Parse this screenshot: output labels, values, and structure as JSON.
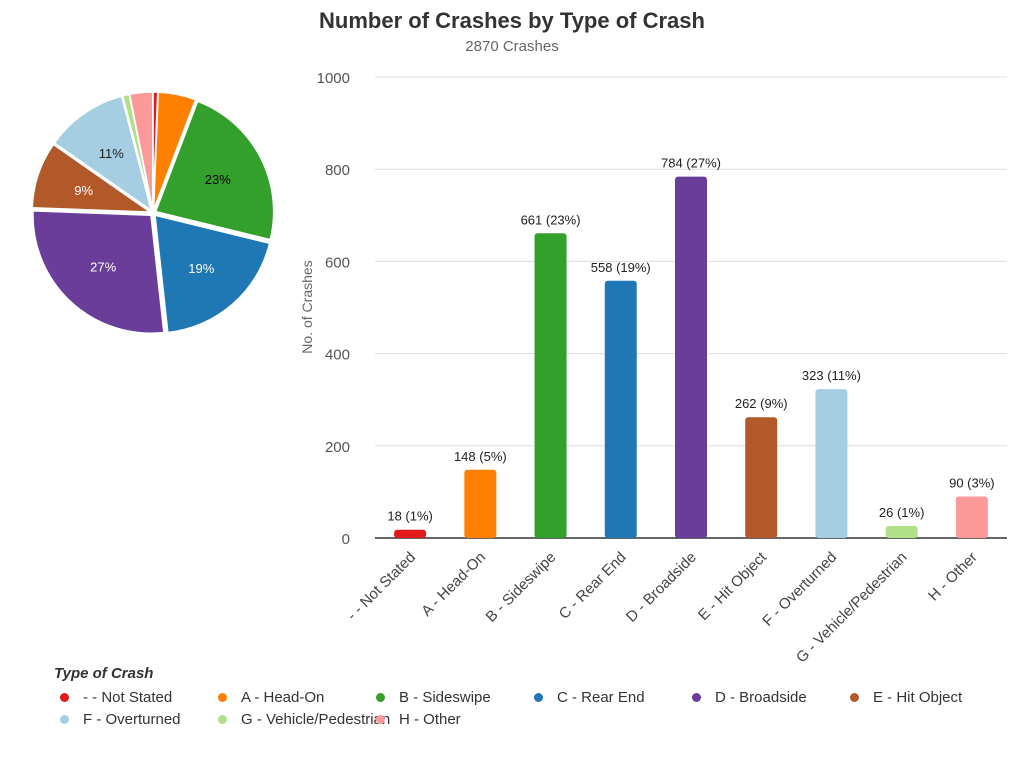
{
  "chart_data": [
    {
      "type": "pie",
      "categories": [
        "- - Not Stated",
        "A - Head-On",
        "B - Sideswipe",
        "C - Rear End",
        "D - Broadside",
        "E - Hit Object",
        "F - Overturned",
        "G - Vehicle/Pedestrian",
        "H - Other"
      ],
      "values": [
        18,
        148,
        661,
        558,
        784,
        262,
        323,
        26,
        90
      ],
      "slice_labels": [
        "",
        "",
        "23%",
        "19%",
        "27%",
        "9%",
        "11%",
        "",
        ""
      ],
      "start": "top",
      "direction": "clockwise"
    },
    {
      "type": "bar",
      "title": "Number of Crashes by Type of Crash",
      "subtitle": "2870 Crashes",
      "xlabel": "",
      "ylabel": "No. of Crashes",
      "ylim": [
        0,
        1000
      ],
      "yticks": [
        "0",
        "200",
        "400",
        "600",
        "800",
        "1000"
      ],
      "grid": true,
      "categories": [
        "- - Not Stated",
        "A - Head-On",
        "B - Sideswipe",
        "C - Rear End",
        "D - Broadside",
        "E - Hit Object",
        "F - Overturned",
        "G - Vehicle/Pedestrian",
        "H - Other"
      ],
      "values": [
        18,
        148,
        661,
        558,
        784,
        262,
        323,
        26,
        90
      ],
      "data_labels": [
        "18 (1%)",
        "148 (5%)",
        "661 (23%)",
        "558 (19%)",
        "784 (27%)",
        "262 (9%)",
        "323 (11%)",
        "26 (1%)",
        "90 (3%)"
      ],
      "colors": [
        "#e31a1c",
        "#ff7f00",
        "#33a02c",
        "#1f78b4",
        "#6a3d9a",
        "#b15928",
        "#a6cee3",
        "#b2df8a",
        "#fb9a99"
      ],
      "legend": {
        "title": "Type of Crash",
        "placement": "bottom-left"
      }
    }
  ]
}
